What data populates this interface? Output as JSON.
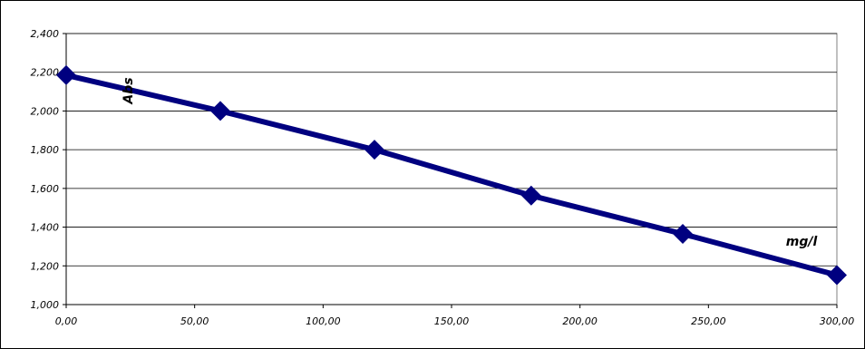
{
  "chart_data": {
    "type": "line",
    "title": "",
    "xlabel": "mg/l",
    "ylabel": "Abs",
    "x": [
      0,
      60,
      120,
      181,
      240,
      300
    ],
    "series": [
      {
        "values": [
          2.185,
          2.0,
          1.8,
          1.563,
          1.365,
          1.152
        ]
      }
    ],
    "xlim": [
      0,
      300
    ],
    "ylim": [
      1.0,
      2.4
    ],
    "x_ticks": [
      "0,00",
      "50,00",
      "100,00",
      "150,00",
      "200,00",
      "250,00",
      "300,00"
    ],
    "y_ticks": [
      "1,000",
      "1,200",
      "1,400",
      "1,600",
      "1,800",
      "2,000",
      "2,200",
      "2,400"
    ],
    "grid": "horizontal",
    "legend": "none",
    "line_color": "#000080",
    "marker": "diamond"
  }
}
